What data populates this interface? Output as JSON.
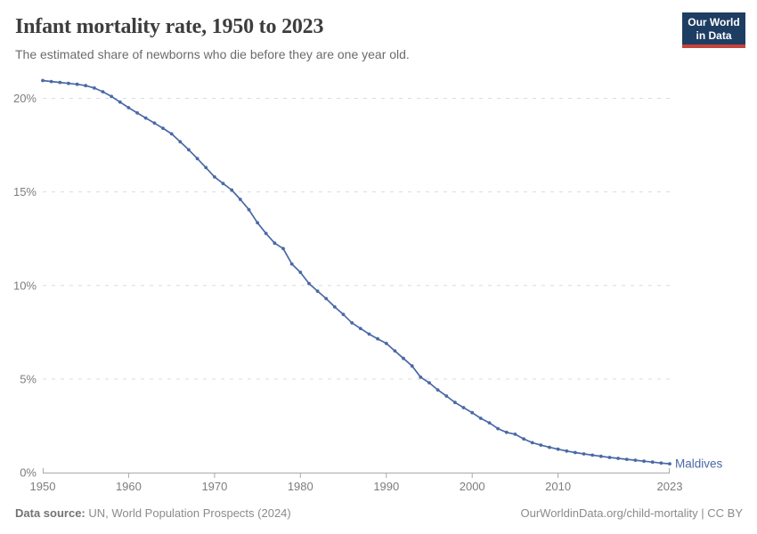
{
  "header": {
    "title": "Infant mortality rate, 1950 to 2023",
    "subtitle": "The estimated share of newborns who die before they are one year old."
  },
  "logo": {
    "line1": "Our World",
    "line2": "in Data",
    "bg_color": "#1d3d63",
    "bar_color": "#c5443c"
  },
  "footer": {
    "source_label": "Data source:",
    "source_text": " UN, World Population Prospects (2024)",
    "credit": "OurWorldinData.org/child-mortality | CC BY"
  },
  "colors": {
    "line": "#4a69a5",
    "grid": "#dcdcdc",
    "axis": "#a9a9a9",
    "tick_label": "#7d7d7d",
    "title": "#3d3d3d",
    "subtitle": "#6b6b6b"
  },
  "chart_data": {
    "type": "line",
    "title": "Infant mortality rate, 1950 to 2023",
    "subtitle": "The estimated share of newborns who die before they are one year old.",
    "xlabel": "",
    "ylabel": "",
    "grid": "horizontal-dashed",
    "legend_position": "end-of-line",
    "xlim": [
      1950,
      2023
    ],
    "ylim": [
      0,
      21
    ],
    "yticks": [
      {
        "value": 0,
        "label": "0%"
      },
      {
        "value": 5,
        "label": "5%"
      },
      {
        "value": 10,
        "label": "10%"
      },
      {
        "value": 15,
        "label": "15%"
      },
      {
        "value": 20,
        "label": "20%"
      }
    ],
    "xticks": [
      {
        "value": 1950,
        "label": "1950"
      },
      {
        "value": 1960,
        "label": "1960"
      },
      {
        "value": 1970,
        "label": "1970"
      },
      {
        "value": 1980,
        "label": "1980"
      },
      {
        "value": 1990,
        "label": "1990"
      },
      {
        "value": 2000,
        "label": "2000"
      },
      {
        "value": 2010,
        "label": "2010"
      },
      {
        "value": 2023,
        "label": "2023"
      }
    ],
    "series": [
      {
        "name": "Maldives",
        "color": "#4a69a5",
        "unit": "%",
        "x": [
          1950,
          1951,
          1952,
          1953,
          1954,
          1955,
          1956,
          1957,
          1958,
          1959,
          1960,
          1961,
          1962,
          1963,
          1964,
          1965,
          1966,
          1967,
          1968,
          1969,
          1970,
          1971,
          1972,
          1973,
          1974,
          1975,
          1976,
          1977,
          1978,
          1979,
          1980,
          1981,
          1982,
          1983,
          1984,
          1985,
          1986,
          1987,
          1988,
          1989,
          1990,
          1991,
          1992,
          1993,
          1994,
          1995,
          1996,
          1997,
          1998,
          1999,
          2000,
          2001,
          2002,
          2003,
          2004,
          2005,
          2006,
          2007,
          2008,
          2009,
          2010,
          2011,
          2012,
          2013,
          2014,
          2015,
          2016,
          2017,
          2018,
          2019,
          2020,
          2021,
          2022,
          2023
        ],
        "y": [
          20.95,
          20.9,
          20.85,
          20.8,
          20.75,
          20.68,
          20.55,
          20.35,
          20.1,
          19.8,
          19.5,
          19.22,
          18.95,
          18.68,
          18.4,
          18.1,
          17.68,
          17.25,
          16.78,
          16.3,
          15.8,
          15.45,
          15.1,
          14.6,
          14.05,
          13.35,
          12.78,
          12.26,
          11.97,
          11.15,
          10.7,
          10.1,
          9.7,
          9.3,
          8.85,
          8.45,
          8.0,
          7.7,
          7.4,
          7.15,
          6.9,
          6.5,
          6.1,
          5.7,
          5.1,
          4.8,
          4.42,
          4.09,
          3.75,
          3.47,
          3.2,
          2.9,
          2.66,
          2.35,
          2.15,
          2.05,
          1.8,
          1.6,
          1.47,
          1.35,
          1.25,
          1.15,
          1.07,
          1.0,
          0.93,
          0.87,
          0.81,
          0.76,
          0.71,
          0.66,
          0.61,
          0.56,
          0.51,
          0.47
        ]
      }
    ]
  }
}
